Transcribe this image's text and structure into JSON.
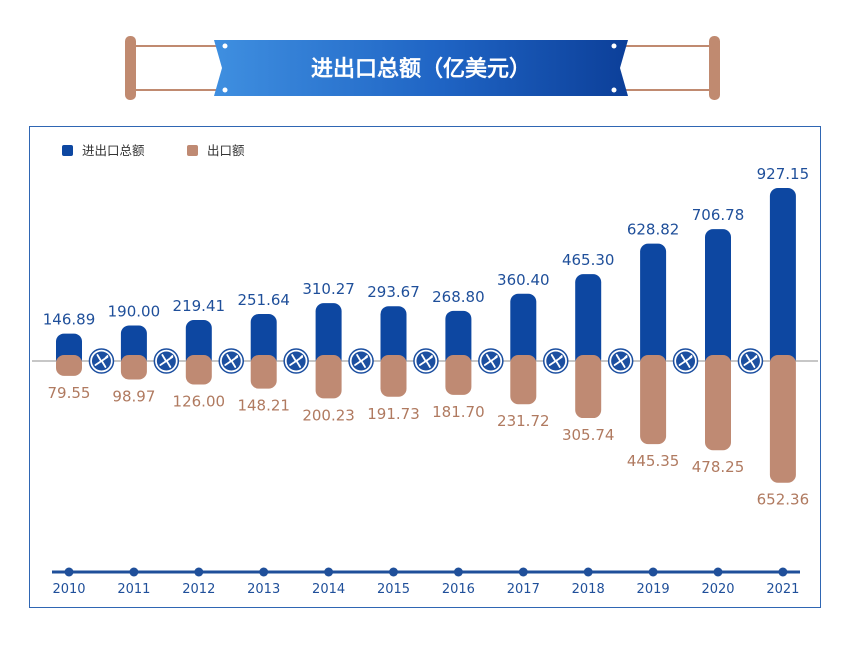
{
  "title": "进出口总额（亿美元）",
  "colors": {
    "total": "#0d47a1",
    "export": "#bf8a73",
    "total_label": "#1f4f9a",
    "export_label": "#b07a60",
    "axis": "#1f4f9a",
    "plane_badge": "#1c4fa0"
  },
  "chart_data": {
    "type": "bar",
    "title": "进出口总额（亿美元）",
    "categories": [
      "2010",
      "2011",
      "2012",
      "2013",
      "2014",
      "2015",
      "2016",
      "2017",
      "2018",
      "2019",
      "2020",
      "2021"
    ],
    "series": [
      {
        "name": "进出口总额",
        "direction": "up",
        "values": [
          146.89,
          190.0,
          219.41,
          251.64,
          310.27,
          293.67,
          268.8,
          360.4,
          465.3,
          628.82,
          706.78,
          927.15
        ],
        "labels": [
          "146.89",
          "190.00",
          "219.41",
          "251.64",
          "310.27",
          "293.67",
          "268.80",
          "360.40",
          "465.30",
          "628.82",
          "706.78",
          "927.15"
        ]
      },
      {
        "name": "出口额",
        "direction": "down",
        "values": [
          79.55,
          98.97,
          126.0,
          148.21,
          200.23,
          191.73,
          181.7,
          231.72,
          305.74,
          445.35,
          478.25,
          652.36
        ],
        "labels": [
          "79.55",
          "98.97",
          "126.00",
          "148.21",
          "200.23",
          "191.73",
          "181.70",
          "231.72",
          "305.74",
          "445.35",
          "478.25",
          "652.36"
        ]
      }
    ],
    "legend": {
      "position": "top-left",
      "items": [
        "进出口总额",
        "出口额"
      ]
    },
    "grid": false,
    "icons": "airplane-icon"
  }
}
